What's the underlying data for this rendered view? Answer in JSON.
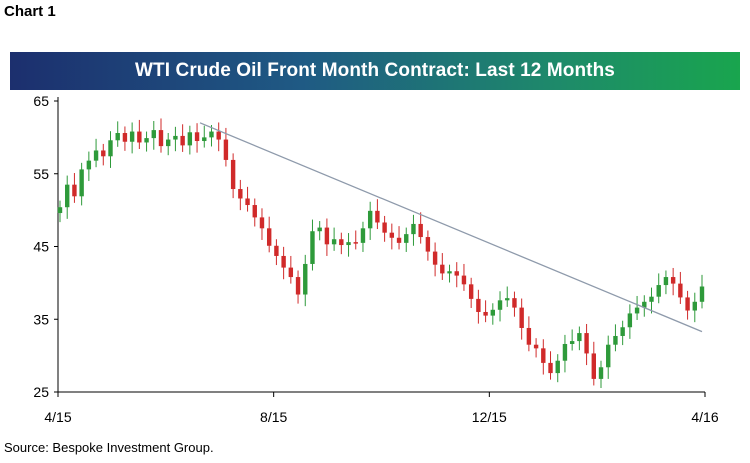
{
  "header": {
    "chart_label": "Chart 1",
    "source": "Source: Bespoke Investment Group."
  },
  "chart_data": {
    "type": "candlestick",
    "title": "WTI Crude Oil Front Month Contract: Last 12 Months",
    "xlabel": "",
    "ylabel": "",
    "ylim": [
      25,
      65
    ],
    "yticks": [
      25,
      35,
      45,
      55,
      65
    ],
    "xticks": [
      "4/15",
      "8/15",
      "12/15",
      "4/16"
    ],
    "up_color": "#2e9a3a",
    "down_color": "#d02a2a",
    "trendline_color": "#8e9aab",
    "grid": false,
    "closes": [
      50.4,
      53.5,
      51.9,
      55.6,
      56.8,
      58.2,
      57.4,
      59.6,
      60.6,
      59.4,
      60.8,
      59.3,
      59.9,
      61.0,
      58.8,
      59.7,
      60.2,
      58.9,
      60.7,
      59.5,
      60.0,
      60.8,
      59.7,
      56.9,
      52.9,
      51.6,
      50.7,
      49.0,
      47.5,
      45.1,
      43.7,
      42.1,
      40.8,
      38.4,
      42.6,
      47.1,
      47.6,
      45.3,
      46.0,
      45.2,
      45.6,
      45.5,
      47.5,
      49.9,
      48.3,
      46.9,
      46.2,
      45.5,
      46.7,
      48.1,
      46.3,
      44.3,
      42.5,
      41.3,
      41.6,
      41.0,
      39.8,
      37.8,
      36.0,
      35.5,
      36.3,
      37.6,
      37.9,
      36.6,
      33.8,
      31.5,
      31.0,
      29.0,
      27.6,
      29.3,
      31.6,
      32.0,
      33.1,
      30.3,
      26.8,
      28.4,
      31.5,
      32.7,
      33.9,
      35.8,
      36.6,
      37.4,
      38.1,
      39.7,
      40.8,
      39.9,
      38.0,
      36.2,
      37.4,
      39.5
    ],
    "trendline": {
      "start": {
        "x": "6/15",
        "y": 62.0
      },
      "end": {
        "x": "4/16",
        "y": 33.3
      }
    }
  }
}
